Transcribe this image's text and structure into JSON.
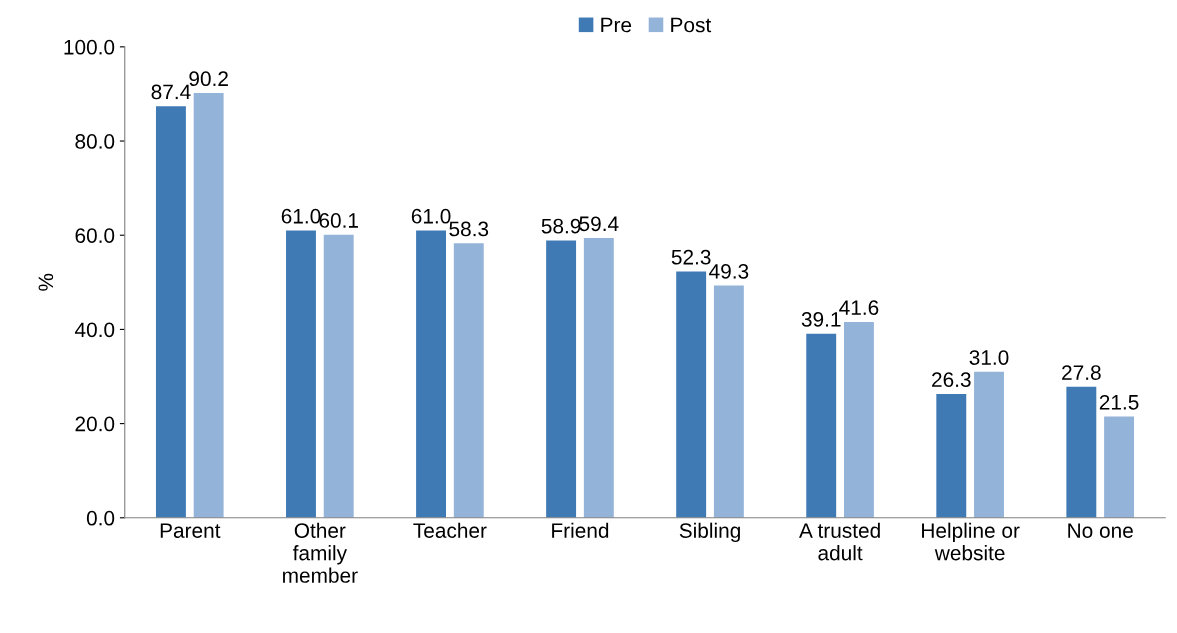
{
  "chart_data": {
    "type": "bar",
    "ylabel": "%",
    "categories": [
      "Parent",
      "Other\nfamily\nmember",
      "Teacher",
      "Friend",
      "Sibling",
      "A trusted\nadult",
      "Helpline or\nwebsite",
      "No one"
    ],
    "series": [
      {
        "name": "Pre",
        "color": "#3f7ab5",
        "values": [
          87.4,
          61.0,
          61.0,
          58.9,
          52.3,
          39.1,
          26.3,
          27.8
        ],
        "value_labels": [
          "87.4",
          "61.0",
          "61.0",
          "58.9",
          "52.3",
          "39.1",
          "26.3",
          "27.8"
        ]
      },
      {
        "name": "Post",
        "color": "#94b3d9",
        "values": [
          90.2,
          60.1,
          58.3,
          59.4,
          49.3,
          41.6,
          31.0,
          21.5
        ],
        "value_labels": [
          "90.2",
          "60.1",
          "58.3",
          "59.4",
          "49.3",
          "41.6",
          "31.0",
          "21.5"
        ]
      }
    ],
    "ylim": [
      0,
      100
    ],
    "yticks": [
      {
        "value": 0,
        "label": "0.0"
      },
      {
        "value": 20,
        "label": "20.0"
      },
      {
        "value": 40,
        "label": "40.0"
      },
      {
        "value": 60,
        "label": "60.0"
      },
      {
        "value": 80,
        "label": "80.0"
      },
      {
        "value": 100,
        "label": "100.0"
      }
    ],
    "legend": "top",
    "grid": false
  }
}
